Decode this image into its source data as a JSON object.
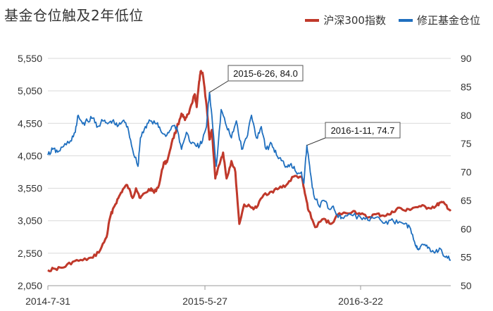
{
  "title": "基金仓位触及2年低位",
  "legend": [
    {
      "name": "沪深300指数",
      "color": "#C0392B"
    },
    {
      "name": "修正基金仓位",
      "color": "#1F6FBF"
    }
  ],
  "chart_data": {
    "type": "line",
    "title": "基金仓位触及2年低位",
    "x_tick_labels": [
      "2014-7-31",
      "2015-5-27",
      "2016-3-22"
    ],
    "x_range": [
      "2014-07-31",
      "2016-10-31"
    ],
    "left_axis": {
      "ylim": [
        2050,
        5550
      ],
      "ticks": [
        "2,050",
        "2,550",
        "3,050",
        "3,550",
        "4,050",
        "4,550",
        "5,050",
        "5,550"
      ]
    },
    "right_axis": {
      "ylim": [
        50,
        90
      ],
      "ticks": [
        "50",
        "55",
        "60",
        "65",
        "70",
        "75",
        "80",
        "85",
        "90"
      ]
    },
    "grid": "horizontal",
    "legend_position": "top-right",
    "series": [
      {
        "name": "沪深300指数",
        "axis": "left",
        "color": "#C0392B",
        "points": [
          [
            "2014-07-31",
            2290
          ],
          [
            "2014-08-15",
            2310
          ],
          [
            "2014-09-01",
            2330
          ],
          [
            "2014-09-20",
            2420
          ],
          [
            "2014-10-10",
            2440
          ],
          [
            "2014-10-31",
            2480
          ],
          [
            "2014-11-15",
            2600
          ],
          [
            "2014-11-28",
            2800
          ],
          [
            "2014-12-05",
            3100
          ],
          [
            "2014-12-12",
            3250
          ],
          [
            "2014-12-22",
            3400
          ],
          [
            "2014-12-31",
            3530
          ],
          [
            "2015-01-09",
            3600
          ],
          [
            "2015-01-20",
            3400
          ],
          [
            "2015-01-27",
            3550
          ],
          [
            "2015-02-05",
            3400
          ],
          [
            "2015-02-15",
            3480
          ],
          [
            "2015-02-27",
            3550
          ],
          [
            "2015-03-05",
            3480
          ],
          [
            "2015-03-15",
            3600
          ],
          [
            "2015-03-25",
            3950
          ],
          [
            "2015-03-31",
            3950
          ],
          [
            "2015-04-10",
            4250
          ],
          [
            "2015-04-20",
            4470
          ],
          [
            "2015-04-30",
            4700
          ],
          [
            "2015-05-07",
            4600
          ],
          [
            "2015-05-15",
            4700
          ],
          [
            "2015-05-27",
            5000
          ],
          [
            "2015-05-31",
            4800
          ],
          [
            "2015-06-05",
            5200
          ],
          [
            "2015-06-08",
            5350
          ],
          [
            "2015-06-12",
            5330
          ],
          [
            "2015-06-19",
            4900
          ],
          [
            "2015-06-26",
            4300
          ],
          [
            "2015-07-01",
            4450
          ],
          [
            "2015-07-08",
            3700
          ],
          [
            "2015-07-15",
            3900
          ],
          [
            "2015-07-24",
            4100
          ],
          [
            "2015-07-31",
            3700
          ],
          [
            "2015-08-10",
            3970
          ],
          [
            "2015-08-18",
            3800
          ],
          [
            "2015-08-26",
            3000
          ],
          [
            "2015-09-05",
            3300
          ],
          [
            "2015-09-20",
            3250
          ],
          [
            "2015-09-30",
            3250
          ],
          [
            "2015-10-15",
            3450
          ],
          [
            "2015-10-31",
            3500
          ],
          [
            "2015-11-15",
            3550
          ],
          [
            "2015-11-30",
            3600
          ],
          [
            "2015-12-15",
            3730
          ],
          [
            "2015-12-31",
            3730
          ],
          [
            "2016-01-07",
            3470
          ],
          [
            "2016-01-15",
            3200
          ],
          [
            "2016-01-28",
            2950
          ],
          [
            "2016-02-15",
            3080
          ],
          [
            "2016-02-29",
            3000
          ],
          [
            "2016-03-15",
            3150
          ],
          [
            "2016-03-22",
            3150
          ],
          [
            "2016-04-15",
            3200
          ],
          [
            "2016-04-30",
            3150
          ],
          [
            "2016-05-15",
            3100
          ],
          [
            "2016-05-31",
            3150
          ],
          [
            "2016-06-15",
            3130
          ],
          [
            "2016-06-30",
            3150
          ],
          [
            "2016-07-15",
            3250
          ],
          [
            "2016-07-31",
            3200
          ],
          [
            "2016-08-15",
            3250
          ],
          [
            "2016-08-31",
            3270
          ],
          [
            "2016-09-15",
            3250
          ],
          [
            "2016-09-30",
            3270
          ],
          [
            "2016-10-10",
            3330
          ],
          [
            "2016-10-20",
            3300
          ],
          [
            "2016-10-31",
            3200
          ]
        ]
      },
      {
        "name": "修正基金仓位",
        "axis": "right",
        "color": "#1F6FBF",
        "points": [
          [
            "2014-07-31",
            73
          ],
          [
            "2014-08-10",
            74
          ],
          [
            "2014-08-20",
            73.5
          ],
          [
            "2014-09-01",
            74.5
          ],
          [
            "2014-09-15",
            75.5
          ],
          [
            "2014-09-25",
            77
          ],
          [
            "2014-10-01",
            80
          ],
          [
            "2014-10-10",
            78.5
          ],
          [
            "2014-10-20",
            79
          ],
          [
            "2014-10-31",
            79.5
          ],
          [
            "2014-11-10",
            78
          ],
          [
            "2014-11-20",
            79
          ],
          [
            "2014-11-30",
            78.5
          ],
          [
            "2014-12-10",
            79
          ],
          [
            "2014-12-20",
            78
          ],
          [
            "2014-12-31",
            79
          ],
          [
            "2015-01-10",
            78
          ],
          [
            "2015-01-20",
            74
          ],
          [
            "2015-01-31",
            71
          ],
          [
            "2015-02-05",
            76
          ],
          [
            "2015-02-15",
            78
          ],
          [
            "2015-02-25",
            79
          ],
          [
            "2015-03-10",
            78.5
          ],
          [
            "2015-03-20",
            77
          ],
          [
            "2015-03-31",
            76.5
          ],
          [
            "2015-04-10",
            78
          ],
          [
            "2015-04-20",
            78
          ],
          [
            "2015-04-30",
            74
          ],
          [
            "2015-05-10",
            77
          ],
          [
            "2015-05-20",
            75
          ],
          [
            "2015-05-31",
            74.5
          ],
          [
            "2015-06-10",
            75
          ],
          [
            "2015-06-20",
            78
          ],
          [
            "2015-06-26",
            84.0
          ],
          [
            "2015-07-01",
            80
          ],
          [
            "2015-07-10",
            71
          ],
          [
            "2015-07-20",
            81
          ],
          [
            "2015-07-31",
            78
          ],
          [
            "2015-08-10",
            76
          ],
          [
            "2015-08-20",
            79
          ],
          [
            "2015-08-31",
            74
          ],
          [
            "2015-09-10",
            76
          ],
          [
            "2015-09-20",
            80
          ],
          [
            "2015-09-30",
            76
          ],
          [
            "2015-10-10",
            78
          ],
          [
            "2015-10-20",
            74
          ],
          [
            "2015-10-31",
            75
          ],
          [
            "2015-11-10",
            73
          ],
          [
            "2015-11-20",
            72
          ],
          [
            "2015-11-30",
            71
          ],
          [
            "2015-12-10",
            71.5
          ],
          [
            "2015-12-20",
            70
          ],
          [
            "2015-12-31",
            70
          ],
          [
            "2016-01-05",
            68
          ],
          [
            "2016-01-11",
            74.7
          ],
          [
            "2016-01-18",
            70
          ],
          [
            "2016-01-25",
            66
          ],
          [
            "2016-02-05",
            64
          ],
          [
            "2016-02-15",
            65
          ],
          [
            "2016-02-25",
            63.5
          ],
          [
            "2016-03-05",
            64
          ],
          [
            "2016-03-15",
            62
          ],
          [
            "2016-03-22",
            62
          ],
          [
            "2016-04-10",
            62.5
          ],
          [
            "2016-04-30",
            62
          ],
          [
            "2016-05-15",
            61.5
          ],
          [
            "2016-05-31",
            62
          ],
          [
            "2016-06-15",
            61
          ],
          [
            "2016-06-30",
            61.5
          ],
          [
            "2016-07-15",
            61
          ],
          [
            "2016-07-31",
            61
          ],
          [
            "2016-08-10",
            60
          ],
          [
            "2016-08-20",
            57
          ],
          [
            "2016-08-25",
            56.5
          ],
          [
            "2016-08-31",
            57
          ],
          [
            "2016-09-10",
            57
          ],
          [
            "2016-09-20",
            56
          ],
          [
            "2016-09-30",
            56
          ],
          [
            "2016-10-10",
            56.5
          ],
          [
            "2016-10-20",
            55
          ],
          [
            "2016-10-31",
            54.5
          ]
        ]
      }
    ],
    "annotations": [
      {
        "text": "2015-6-26, 84.0",
        "x": "2015-06-26",
        "y": 84.0,
        "axis": "right"
      },
      {
        "text": "2016-1-11, 74.7",
        "x": "2016-01-11",
        "y": 74.7,
        "axis": "right"
      }
    ]
  }
}
